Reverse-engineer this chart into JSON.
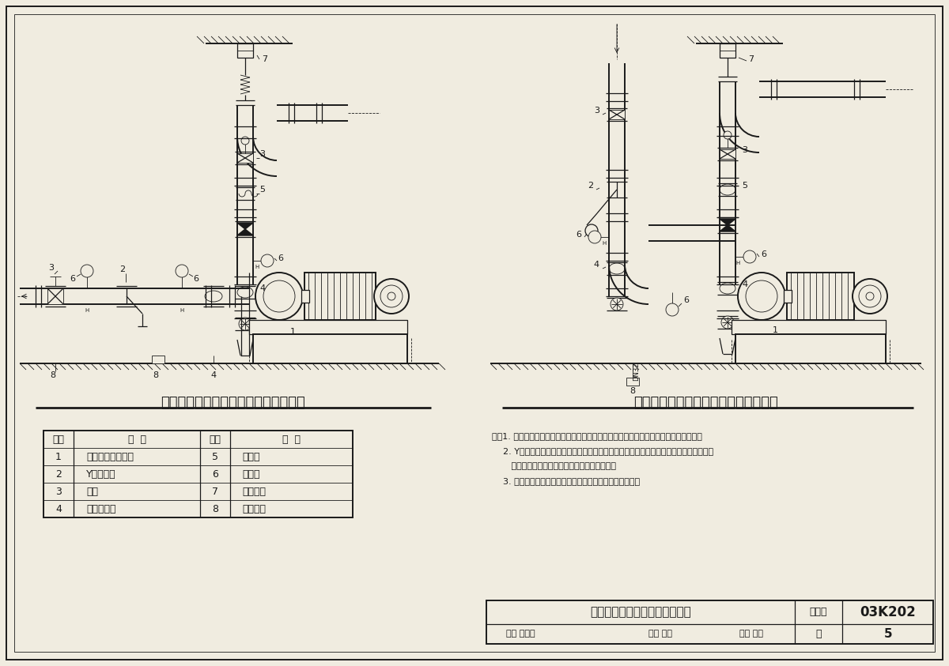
{
  "bg_color": "#f0ece0",
  "line_color": "#1a1a1a",
  "title1": "单级单吸卧式离心泵接管示意图（一）",
  "title2": "单级单吸卧式离心泵接管示意图（二）",
  "table_headers": [
    "编号",
    "名  称",
    "编号",
    "名  称"
  ],
  "table_data": [
    [
      "1",
      "水泵（包括电机）",
      "5",
      "止回阀"
    ],
    [
      "2",
      "Y型过滤器",
      "6",
      "压力表"
    ],
    [
      "3",
      "阀门",
      "7",
      "弹性吊架"
    ],
    [
      "4",
      "可曲挠接头",
      "8",
      "弹性托架"
    ]
  ],
  "notes": [
    "注：1. 本图仅表示卧式离心式水泵进出水管基本接管形式。设计允许时，也可使用喷弯。",
    "    2. Y型过滤器可由设计人员决定是否安装（或根据实际情况选用其它过滤器或除污器）。",
    "       安装时应确保能抽出滤芯，便于清洗或检修。",
    "    3. 压力表型号及安装位置由设计人员根据实际情况确定。"
  ],
  "footer_title": "单级单吸卧式离心泵接管示意图",
  "atlas_no_label": "图集号",
  "atlas_no": "03K202",
  "page_label": "页",
  "page_no": "5",
  "review_text": "审核 马友才",
  "check_text": "校对 张昕",
  "design_text": "设计 徐鸿"
}
